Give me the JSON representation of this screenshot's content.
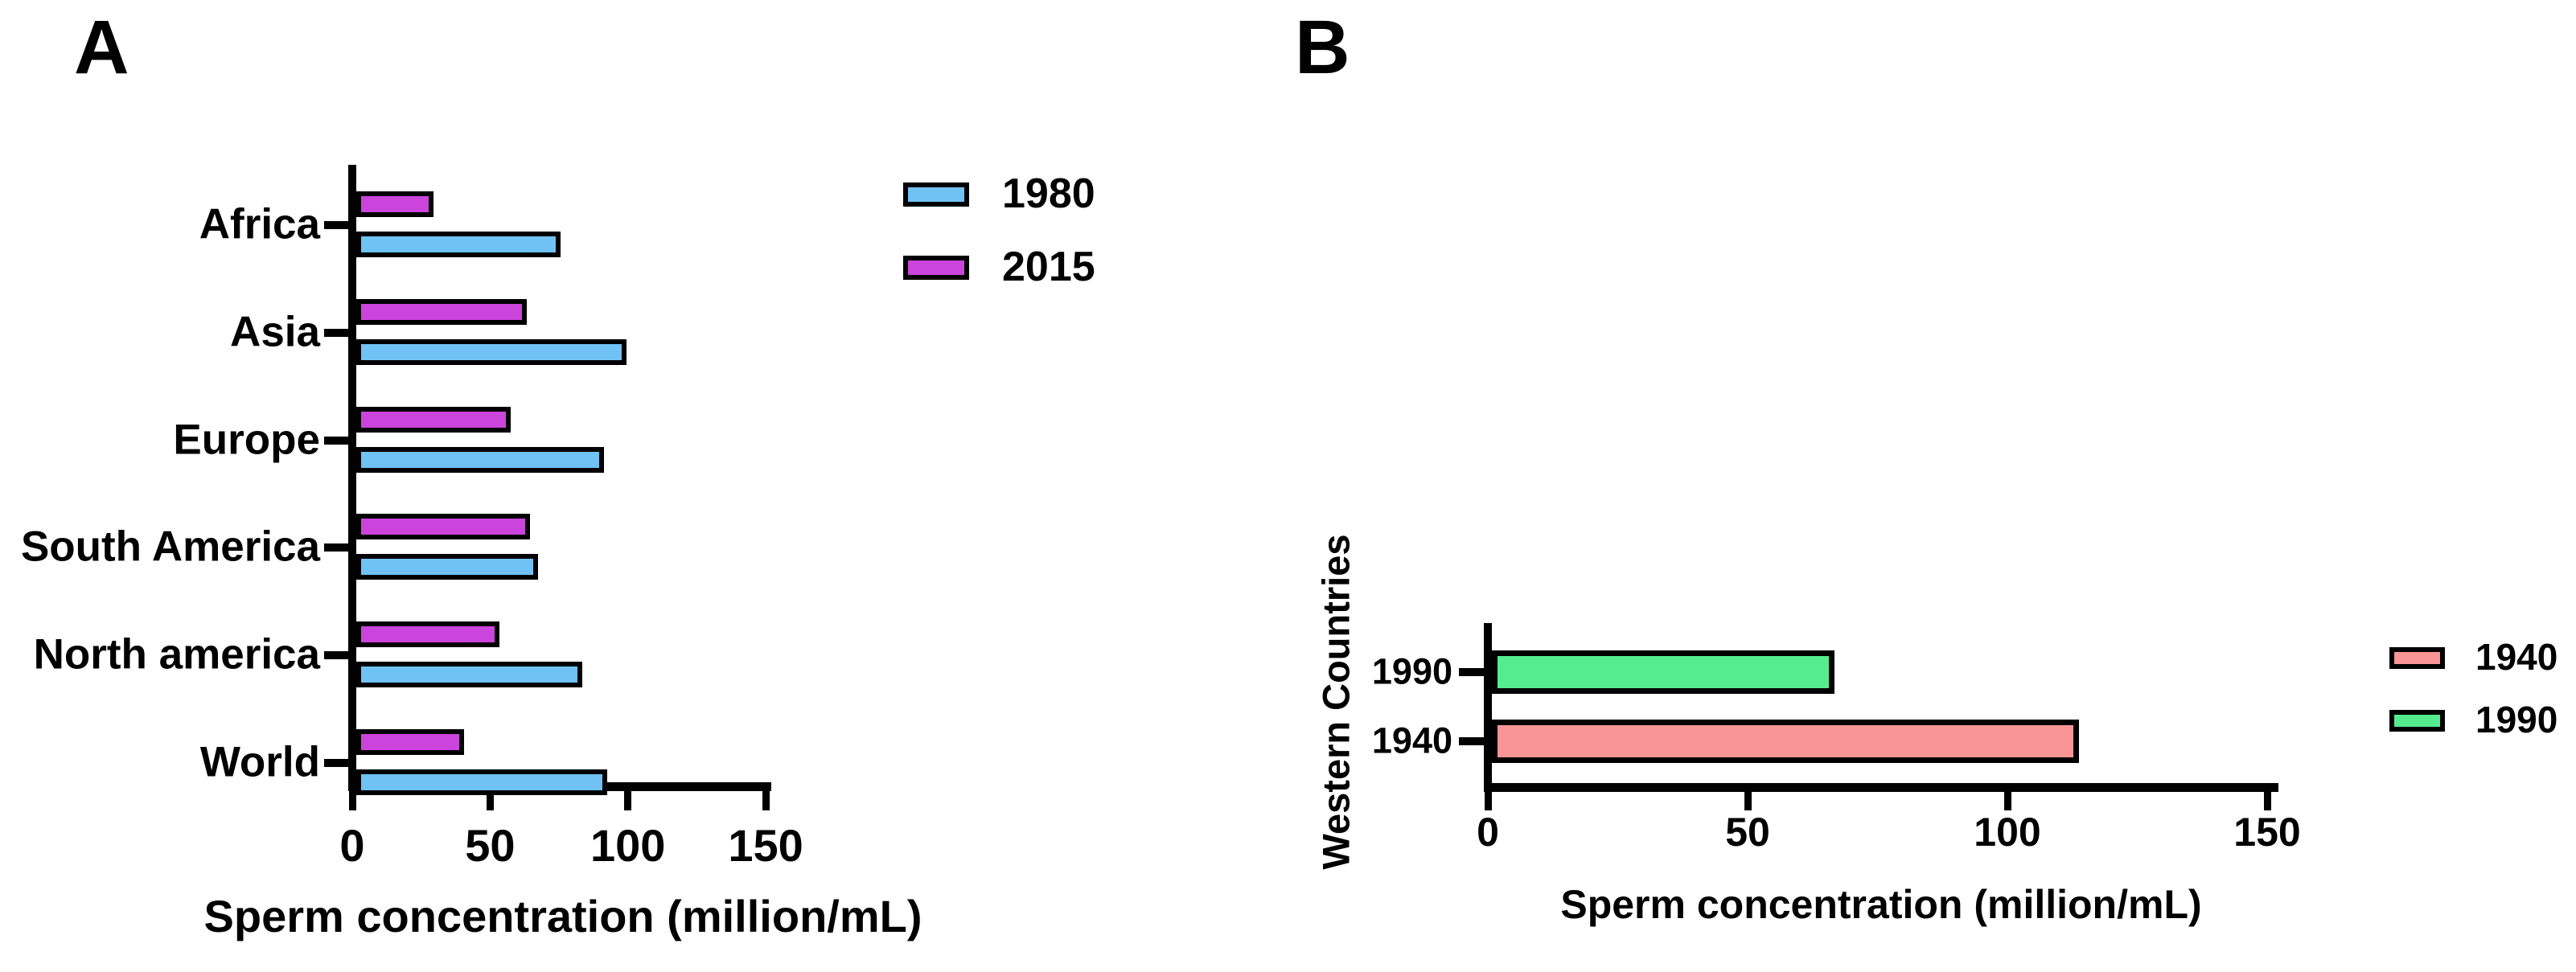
{
  "page": {
    "background": "#ffffff"
  },
  "chart_data": [
    {
      "type": "bar",
      "orientation": "horizontal",
      "panel_label": "A",
      "categories": [
        "Africa",
        "Asia",
        "Europe",
        "South America",
        "North america",
        "World"
      ],
      "series": [
        {
          "name": "1980",
          "color": "#70C1F4",
          "values": [
            74,
            98,
            90,
            66,
            82,
            91
          ]
        },
        {
          "name": "2015",
          "color": "#CB44DC",
          "values": [
            28,
            62,
            56,
            63,
            52,
            39
          ]
        }
      ],
      "xlabel": "Sperm concentration (million/mL)",
      "xlim": [
        0,
        150
      ],
      "x_ticks": [
        0,
        50,
        100,
        150
      ],
      "grid": false,
      "legend": [
        {
          "label": "1980",
          "color": "#70C1F4"
        },
        {
          "label": "2015",
          "color": "#CB44DC"
        }
      ],
      "legend_position": "upper-right"
    },
    {
      "type": "bar",
      "orientation": "horizontal",
      "panel_label": "B",
      "categories": [
        "1990",
        "1940"
      ],
      "values": [
        66,
        113
      ],
      "bar_colors": [
        "#55EC8F",
        "#FA9595"
      ],
      "xlabel": "Sperm concentration (million/mL)",
      "ylabel": "Western Countries",
      "xlim": [
        0,
        150
      ],
      "x_ticks": [
        0,
        50,
        100,
        150
      ],
      "grid": false,
      "legend": [
        {
          "label": "1940",
          "color": "#FA9595"
        },
        {
          "label": "1990",
          "color": "#55EC8F"
        }
      ],
      "legend_position": "right"
    }
  ],
  "colors": {
    "axis": "#000000",
    "bar_outline": "#000000",
    "blue_1980": "#70C1F4",
    "magenta_2015": "#CB44DC",
    "green_1990": "#55EC8F",
    "salmon_1940": "#FA9595"
  }
}
